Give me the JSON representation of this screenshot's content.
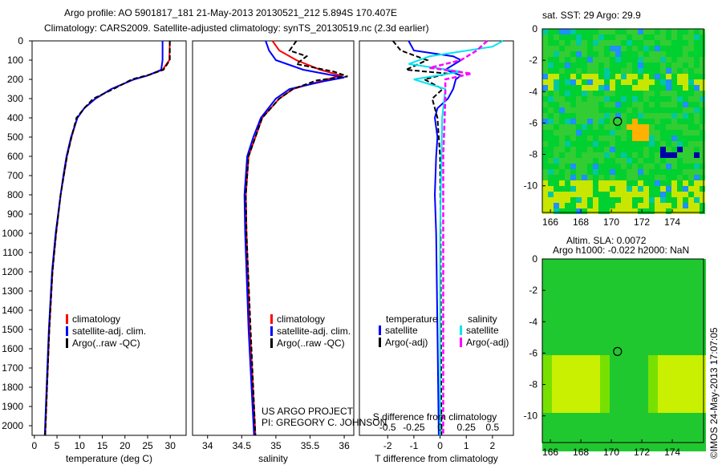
{
  "title_lines": [
    "Argo profile: AO 5901817_181 21-May-2013 20130521_212 5.894S 170.407E",
    "Climatology: CARS2009. Satellite-adjusted climatology: synTS_20130519.nc (2.3d earlier)"
  ],
  "credits": {
    "project": "US ARGO PROJECT",
    "pi": "PI: GREGORY C. JOHNSON",
    "stamp": "©IMOS 24-May-2013 17:07:05"
  },
  "colors": {
    "climatology": "#ff0000",
    "satellite": "#0000ff",
    "argo": "#000000",
    "sal_satellite": "#00e5ee",
    "sal_argo": "#ff00ff"
  },
  "chart_data": [
    {
      "type": "line",
      "name": "temperature",
      "xlabel": "temperature (deg C)",
      "xlim": [
        -0.5,
        33.5
      ],
      "ylim": [
        2050,
        0
      ],
      "xticks": [
        0,
        5,
        10,
        15,
        20,
        25,
        30
      ],
      "yticks": [
        0,
        100,
        200,
        300,
        400,
        500,
        600,
        700,
        800,
        900,
        1000,
        1100,
        1200,
        1300,
        1400,
        1500,
        1600,
        1700,
        1800,
        1900,
        2000
      ],
      "legend": [
        "climatology",
        "satellite-adj. clim.",
        "Argo(..raw -QC)"
      ],
      "series": [
        {
          "name": "climatology",
          "points": [
            [
              0,
              29.9
            ],
            [
              100,
              29.8
            ],
            [
              150,
              28.3
            ],
            [
              180,
              25
            ],
            [
              200,
              22
            ],
            [
              250,
              17
            ],
            [
              300,
              13.5
            ],
            [
              350,
              11
            ],
            [
              400,
              9.5
            ],
            [
              500,
              8.2
            ],
            [
              600,
              7.2
            ],
            [
              700,
              6.5
            ],
            [
              800,
              5.8
            ],
            [
              1000,
              4.8
            ],
            [
              1200,
              4.0
            ],
            [
              1500,
              3.3
            ],
            [
              1800,
              2.8
            ],
            [
              2050,
              2.4
            ]
          ]
        },
        {
          "name": "satellite-adj. clim.",
          "points": [
            [
              0,
              28.3
            ],
            [
              100,
              28.3
            ],
            [
              150,
              28.0
            ],
            [
              180,
              25
            ],
            [
              200,
              22
            ],
            [
              250,
              17
            ],
            [
              300,
              13.5
            ],
            [
              350,
              11
            ],
            [
              400,
              9.5
            ],
            [
              500,
              8.1
            ],
            [
              600,
              7.1
            ],
            [
              700,
              6.4
            ],
            [
              800,
              5.8
            ],
            [
              1000,
              4.7
            ],
            [
              1200,
              3.9
            ],
            [
              1500,
              3.2
            ],
            [
              1800,
              2.7
            ],
            [
              2050,
              2.3
            ]
          ]
        },
        {
          "name": "Argo(..raw -QC)",
          "points": [
            [
              0,
              29.9
            ],
            [
              100,
              29.9
            ],
            [
              150,
              28.5
            ],
            [
              175,
              25.5
            ],
            [
              200,
              21.5
            ],
            [
              250,
              17.5
            ],
            [
              300,
              13
            ],
            [
              350,
              11
            ],
            [
              400,
              9.3
            ],
            [
              500,
              8.2
            ],
            [
              600,
              7.2
            ],
            [
              700,
              6.5
            ],
            [
              800,
              5.8
            ],
            [
              1000,
              4.8
            ],
            [
              1200,
              4.0
            ],
            [
              1500,
              3.3
            ],
            [
              1800,
              2.8
            ],
            [
              2050,
              2.4
            ]
          ]
        }
      ]
    },
    {
      "type": "line",
      "name": "salinity",
      "xlabel": "salinity",
      "xlim": [
        33.78,
        36.14
      ],
      "ylim": [
        2050,
        0
      ],
      "xticks": [
        34,
        34.5,
        35,
        35.5,
        36
      ],
      "legend": [
        "climatology",
        "satellite-adj. clim.",
        "Argo(..raw -QC)"
      ],
      "series": [
        {
          "name": "climatology",
          "points": [
            [
              0,
              34.95
            ],
            [
              50,
              35.05
            ],
            [
              100,
              35.3
            ],
            [
              150,
              35.65
            ],
            [
              180,
              35.95
            ],
            [
              200,
              35.75
            ],
            [
              250,
              35.25
            ],
            [
              300,
              35.05
            ],
            [
              400,
              34.8
            ],
            [
              500,
              34.7
            ],
            [
              600,
              34.6
            ],
            [
              800,
              34.56
            ],
            [
              1000,
              34.57
            ],
            [
              1500,
              34.62
            ],
            [
              2050,
              34.7
            ]
          ]
        },
        {
          "name": "satellite-adj. clim.",
          "points": [
            [
              0,
              34.85
            ],
            [
              50,
              34.9
            ],
            [
              100,
              35.0
            ],
            [
              150,
              35.4
            ],
            [
              190,
              36.0
            ],
            [
              210,
              35.7
            ],
            [
              250,
              35.2
            ],
            [
              300,
              35.0
            ],
            [
              400,
              34.78
            ],
            [
              500,
              34.67
            ],
            [
              600,
              34.58
            ],
            [
              800,
              34.54
            ],
            [
              1000,
              34.55
            ],
            [
              1500,
              34.6
            ],
            [
              2050,
              34.68
            ]
          ]
        },
        {
          "name": "Argo(..raw -QC)",
          "points": [
            [
              0,
              35.3
            ],
            [
              50,
              35.2
            ],
            [
              80,
              35.45
            ],
            [
              120,
              35.3
            ],
            [
              160,
              35.85
            ],
            [
              185,
              36.05
            ],
            [
              205,
              35.6
            ],
            [
              250,
              35.25
            ],
            [
              300,
              35.05
            ],
            [
              400,
              34.8
            ],
            [
              500,
              34.7
            ],
            [
              600,
              34.6
            ],
            [
              800,
              34.56
            ],
            [
              1000,
              34.57
            ],
            [
              1500,
              34.63
            ],
            [
              2050,
              34.7
            ]
          ]
        }
      ]
    },
    {
      "type": "line",
      "name": "difference",
      "xlabel": "T difference from climatology",
      "x2label": "S difference from climatology",
      "xlim": [
        -3.08,
        2.8
      ],
      "ylim": [
        2050,
        0
      ],
      "xticks": [
        -2,
        -1,
        0,
        1,
        2
      ],
      "x2ticks": [
        -0.5,
        -0.25,
        0,
        0.25,
        0.5
      ],
      "x2tick_labels": [
        "-0.5",
        "-0.25",
        "0",
        "0.25",
        "0.5"
      ],
      "legend": {
        "temperature_title": "temperature",
        "salinity_title": "salinity",
        "items": [
          "satellite",
          "Argo(-adj)",
          "satellite",
          "Argo(-adj)"
        ]
      },
      "series": [
        {
          "name": "T satellite",
          "points": [
            [
              0,
              -1.2
            ],
            [
              50,
              -1.0
            ],
            [
              80,
              0.5
            ],
            [
              100,
              0.8
            ],
            [
              150,
              0.2
            ],
            [
              180,
              0.8
            ],
            [
              200,
              0.6
            ],
            [
              250,
              0.5
            ],
            [
              300,
              0.3
            ],
            [
              350,
              -0.1
            ],
            [
              400,
              -0.2
            ],
            [
              500,
              -0.1
            ],
            [
              600,
              -0.15
            ],
            [
              800,
              -0.2
            ],
            [
              1000,
              -0.15
            ],
            [
              1500,
              -0.1
            ],
            [
              2050,
              -0.05
            ]
          ]
        },
        {
          "name": "T Argo(-adj)",
          "points": [
            [
              0,
              -1.8
            ],
            [
              50,
              -1.5
            ],
            [
              100,
              -0.5
            ],
            [
              150,
              -1.3
            ],
            [
              170,
              0.3
            ],
            [
              200,
              -0.6
            ],
            [
              250,
              0.1
            ],
            [
              300,
              -0.3
            ],
            [
              400,
              -0.1
            ],
            [
              600,
              0
            ],
            [
              1000,
              0.02
            ],
            [
              2050,
              0.05
            ]
          ]
        },
        {
          "name": "S satellite",
          "scale": 4,
          "points": [
            [
              0,
              0.6
            ],
            [
              30,
              0.5
            ],
            [
              80,
              -0.1
            ],
            [
              120,
              -0.3
            ],
            [
              160,
              0.2
            ],
            [
              200,
              -0.25
            ],
            [
              250,
              0.05
            ],
            [
              400,
              0.02
            ],
            [
              1000,
              0
            ],
            [
              2050,
              0
            ]
          ]
        },
        {
          "name": "S Argo(-adj)",
          "scale": 4,
          "points": [
            [
              0,
              0.45
            ],
            [
              50,
              0.35
            ],
            [
              100,
              0.2
            ],
            [
              140,
              -0.1
            ],
            [
              170,
              0.3
            ],
            [
              200,
              0.05
            ],
            [
              300,
              0.05
            ],
            [
              600,
              0.03
            ],
            [
              2050,
              0.03
            ]
          ]
        }
      ]
    },
    {
      "type": "heatmap",
      "name": "sst-map",
      "title": "sat. SST: 29 Argo: 29.9",
      "xlim": [
        165.47,
        176.05
      ],
      "ylim": [
        -11.7,
        0
      ],
      "xticks": [
        166,
        168,
        170,
        172,
        174
      ],
      "yticks": [
        0,
        -2,
        -4,
        -6,
        -8,
        -10
      ],
      "argo_position": [
        170.407,
        -5.894
      ]
    },
    {
      "type": "heatmap",
      "name": "sla-map",
      "title_lines": [
        "Altim. SLA: 0.0072",
        "Argo h1000: -0.022 h2000: NaN"
      ],
      "xlim": [
        165.47,
        176.05
      ],
      "ylim": [
        -11.7,
        0
      ],
      "xticks": [
        166,
        168,
        170,
        172,
        174
      ],
      "yticks": [
        0,
        -2,
        -4,
        -6,
        -8,
        -10
      ],
      "argo_position": [
        170.407,
        -5.894
      ]
    }
  ]
}
